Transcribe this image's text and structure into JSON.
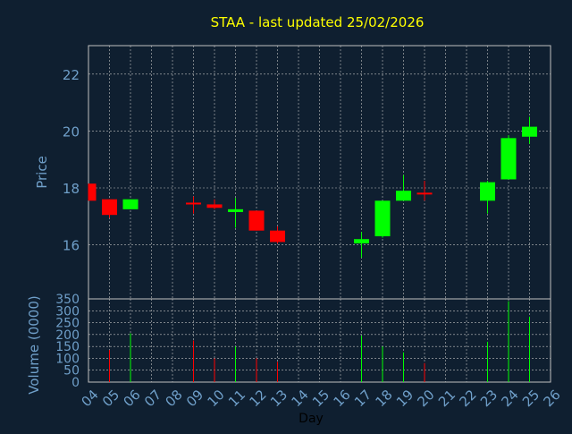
{
  "title": "STAA - last updated 25/02/2026",
  "colors": {
    "background": "#0f1f30",
    "title": "#ffff00",
    "axis_text": "#6f9fc9",
    "grid": "#c0c0c0",
    "up": "#00ff00",
    "down": "#ff0000"
  },
  "chart_data": [
    {
      "type": "candlestick",
      "ylabel": "Price",
      "ylim": [
        14.1,
        23.0
      ],
      "yticks": [
        16,
        18,
        20,
        22
      ],
      "grid": true,
      "x_ticks": [
        "04",
        "05",
        "06",
        "07",
        "08",
        "09",
        "10",
        "11",
        "12",
        "13",
        "14",
        "15",
        "16",
        "17",
        "18",
        "19",
        "20",
        "21",
        "22",
        "23",
        "24",
        "25",
        "26"
      ],
      "candles": [
        {
          "day": "04",
          "open": 18.15,
          "high": 18.15,
          "low": 17.55,
          "close": 17.55
        },
        {
          "day": "05",
          "open": 17.6,
          "high": 17.6,
          "low": 16.95,
          "close": 17.05
        },
        {
          "day": "06",
          "open": 17.25,
          "high": 17.6,
          "low": 17.25,
          "close": 17.6
        },
        {
          "day": "09",
          "open": 17.45,
          "high": 17.7,
          "low": 17.1,
          "close": 17.42
        },
        {
          "day": "10",
          "open": 17.42,
          "high": 17.6,
          "low": 17.25,
          "close": 17.3
        },
        {
          "day": "11",
          "open": 17.15,
          "high": 17.65,
          "low": 16.6,
          "close": 17.25
        },
        {
          "day": "12",
          "open": 17.2,
          "high": 17.2,
          "low": 16.5,
          "close": 16.5
        },
        {
          "day": "13",
          "open": 16.5,
          "high": 16.65,
          "low": 16.05,
          "close": 16.1
        },
        {
          "day": "17",
          "open": 16.05,
          "high": 16.45,
          "low": 15.55,
          "close": 16.2
        },
        {
          "day": "18",
          "open": 16.3,
          "high": 17.55,
          "low": 16.25,
          "close": 17.55
        },
        {
          "day": "19",
          "open": 17.55,
          "high": 18.45,
          "low": 17.55,
          "close": 17.9
        },
        {
          "day": "20",
          "open": 17.8,
          "high": 18.25,
          "low": 17.55,
          "close": 17.75
        },
        {
          "day": "23",
          "open": 17.55,
          "high": 18.25,
          "low": 17.1,
          "close": 18.2
        },
        {
          "day": "24",
          "open": 18.3,
          "high": 19.85,
          "low": 18.3,
          "close": 19.75
        },
        {
          "day": "25",
          "open": 19.8,
          "high": 20.5,
          "low": 19.55,
          "close": 20.15
        }
      ]
    },
    {
      "type": "bar",
      "ylabel": "Volume (0000)",
      "xlabel": "Day",
      "ylim": [
        0,
        350
      ],
      "yticks": [
        0,
        50,
        100,
        150,
        200,
        250,
        300,
        350
      ],
      "grid": true,
      "x_ticks": [
        "04",
        "05",
        "06",
        "07",
        "08",
        "09",
        "10",
        "11",
        "12",
        "13",
        "14",
        "15",
        "16",
        "17",
        "18",
        "19",
        "20",
        "21",
        "22",
        "23",
        "24",
        "25",
        "26"
      ],
      "bars": [
        {
          "day": "05",
          "value": 135,
          "direction": "down"
        },
        {
          "day": "06",
          "value": 205,
          "direction": "up"
        },
        {
          "day": "09",
          "value": 175,
          "direction": "down"
        },
        {
          "day": "10",
          "value": 100,
          "direction": "down"
        },
        {
          "day": "11",
          "value": 150,
          "direction": "up"
        },
        {
          "day": "12",
          "value": 100,
          "direction": "down"
        },
        {
          "day": "13",
          "value": 85,
          "direction": "down"
        },
        {
          "day": "17",
          "value": 195,
          "direction": "up"
        },
        {
          "day": "18",
          "value": 150,
          "direction": "up"
        },
        {
          "day": "19",
          "value": 125,
          "direction": "up"
        },
        {
          "day": "20",
          "value": 80,
          "direction": "down"
        },
        {
          "day": "23",
          "value": 170,
          "direction": "up"
        },
        {
          "day": "24",
          "value": 340,
          "direction": "up"
        },
        {
          "day": "25",
          "value": 275,
          "direction": "up"
        }
      ]
    }
  ]
}
